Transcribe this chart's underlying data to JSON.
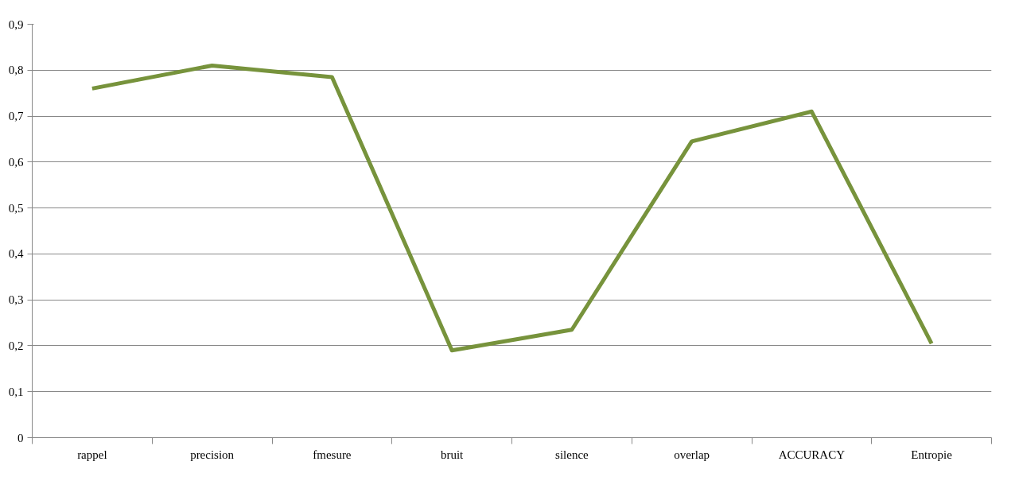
{
  "chart_data": {
    "type": "line",
    "categories": [
      "rappel",
      "precision",
      "fmesure",
      "bruit",
      "silence",
      "overlap",
      "ACCURACY",
      "Entropie"
    ],
    "series": [
      {
        "color": "#77933c",
        "values": [
          0.76,
          0.81,
          0.785,
          0.19,
          0.235,
          0.645,
          0.71,
          0.205
        ]
      }
    ],
    "ylim": [
      0,
      0.9
    ],
    "yticks": [
      {
        "value": 0,
        "label": "0"
      },
      {
        "value": 0.1,
        "label": "0,1"
      },
      {
        "value": 0.2,
        "label": "0,2"
      },
      {
        "value": 0.3,
        "label": "0,3"
      },
      {
        "value": 0.4,
        "label": "0,4"
      },
      {
        "value": 0.5,
        "label": "0,5"
      },
      {
        "value": 0.6,
        "label": "0,6"
      },
      {
        "value": 0.7,
        "label": "0,7"
      },
      {
        "value": 0.8,
        "label": "0,8"
      },
      {
        "value": 0.9,
        "label": "0,9"
      }
    ],
    "grid": "y",
    "marker": "none",
    "line_style": "solid"
  }
}
